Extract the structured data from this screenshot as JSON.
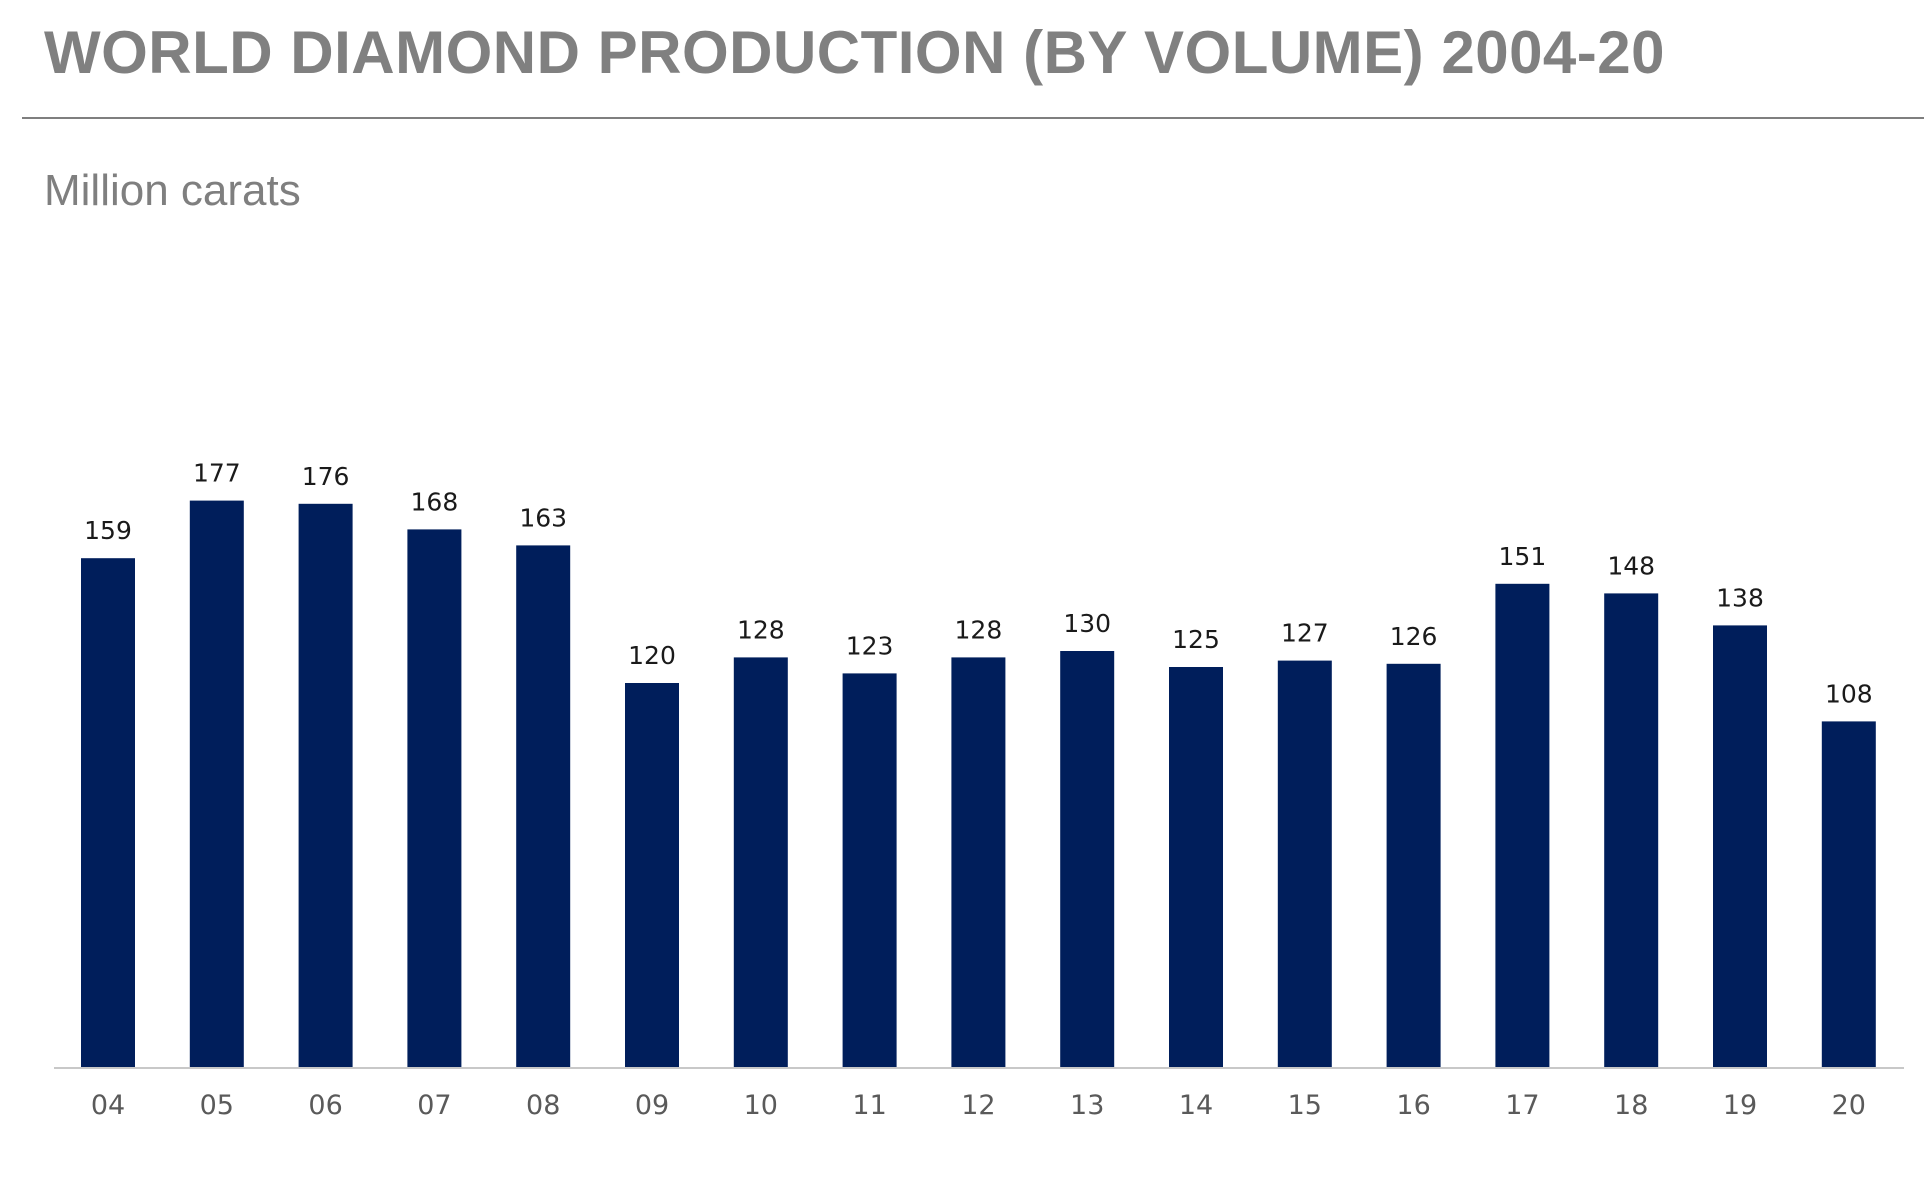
{
  "title": "WORLD DIAMOND PRODUCTION (BY VOLUME) 2004-20",
  "subtitle": "Million carats",
  "colors": {
    "bar": "#001e5b",
    "title": "#808080",
    "axis": "#c8c8c8"
  },
  "chart_data": {
    "type": "bar",
    "title": "WORLD DIAMOND PRODUCTION (BY VOLUME) 2004-20",
    "ylabel": "Million carats",
    "xlabel": "",
    "categories": [
      "04",
      "05",
      "06",
      "07",
      "08",
      "09",
      "10",
      "11",
      "12",
      "13",
      "14",
      "15",
      "16",
      "17",
      "18",
      "19",
      "20"
    ],
    "values": [
      159,
      177,
      176,
      168,
      163,
      120,
      128,
      123,
      128,
      130,
      125,
      127,
      126,
      151,
      148,
      138,
      108
    ],
    "ylim": [
      0,
      190
    ],
    "grid": false,
    "legend": "none",
    "data_labels": true
  }
}
